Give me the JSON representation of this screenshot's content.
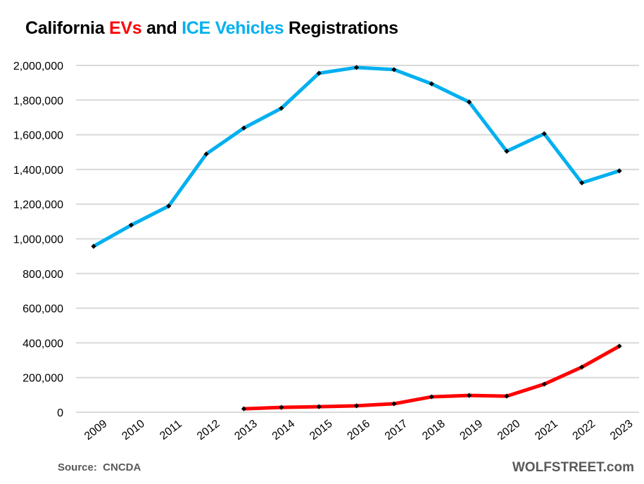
{
  "chart_data": {
    "type": "line",
    "title": {
      "parts": [
        {
          "text": "California ",
          "color": "#000000"
        },
        {
          "text": "EVs",
          "color": "#ff0000"
        },
        {
          "text": " and ",
          "color": "#000000"
        },
        {
          "text": "ICE Vehicles",
          "color": "#00b0f0"
        },
        {
          "text": " Registrations",
          "color": "#000000"
        }
      ]
    },
    "xlabel": "",
    "ylabel": "",
    "x": [
      "2009",
      "2010",
      "2011",
      "2012",
      "2013",
      "2014",
      "2015",
      "2016",
      "2017",
      "2018",
      "2019",
      "2020",
      "2021",
      "2022",
      "2023"
    ],
    "ylim": [
      0,
      2000000
    ],
    "yticks": [
      0,
      200000,
      400000,
      600000,
      800000,
      1000000,
      1200000,
      1400000,
      1600000,
      1800000,
      2000000
    ],
    "ytick_labels": [
      "0",
      "200,000",
      "400,000",
      "600,000",
      "800,000",
      "1,000,000",
      "1,200,000",
      "1,400,000",
      "1,600,000",
      "1,800,000",
      "2,000,000"
    ],
    "grid": "horizontal",
    "legend": "none (series identified by colored title words)",
    "series": [
      {
        "name": "ICE Vehicles",
        "color": "#00b0f0",
        "marker": "black-diamond",
        "values": [
          957000,
          1079000,
          1189000,
          1489000,
          1639000,
          1753000,
          1955000,
          1988000,
          1976000,
          1894000,
          1789000,
          1505000,
          1606000,
          1323000,
          1392000
        ]
      },
      {
        "name": "EVs",
        "color": "#ff0000",
        "marker": "black-diamond",
        "values": [
          null,
          null,
          null,
          null,
          20000,
          28000,
          32000,
          37000,
          49000,
          89000,
          97000,
          93000,
          162000,
          260000,
          381000
        ]
      }
    ],
    "gridline_color": "#d9d9d9"
  },
  "footer": {
    "source": "Source:  CNCDA",
    "brand": "WOLFSTREET.com"
  }
}
